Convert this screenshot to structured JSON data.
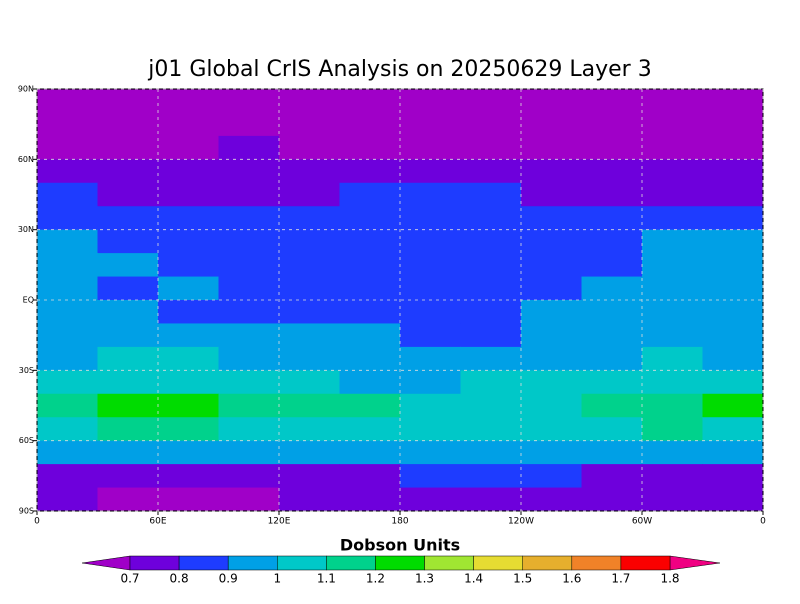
{
  "chart_data": {
    "type": "contour-map",
    "title": "j01 Global CrIS Analysis on 20250629 Layer 3",
    "colorbar_label": "Dobson Units",
    "xlim": [
      0,
      360
    ],
    "ylim": [
      -90,
      90
    ],
    "xticks": [
      0,
      {
        "value": 60,
        "label": "60E"
      },
      {
        "value": 120,
        "label": "120E"
      },
      180,
      {
        "value": 240,
        "label": "120W"
      },
      {
        "value": 300,
        "label": "60W"
      },
      {
        "value": 360,
        "label": "0"
      }
    ],
    "yticks": [
      {
        "value": 90,
        "label": "90N"
      },
      {
        "value": 60,
        "label": "60N"
      },
      {
        "value": 30,
        "label": "30N"
      },
      {
        "value": 0,
        "label": "EQ"
      },
      {
        "value": -30,
        "label": "30S"
      },
      {
        "value": -60,
        "label": "60S"
      },
      {
        "value": -90,
        "label": "90S"
      }
    ],
    "grid": true,
    "levels": [
      0.7,
      0.8,
      0.9,
      1,
      1.1,
      1.2,
      1.3,
      1.4,
      1.5,
      1.6,
      1.7,
      1.8
    ],
    "colors": [
      "#a000c8",
      "#6e00dc",
      "#1e3cff",
      "#00a0e6",
      "#00c8c8",
      "#00d28c",
      "#00dc00",
      "#a0e632",
      "#e6dc32",
      "#e6af2d",
      "#f08228",
      "#fa0000",
      "#f00082"
    ],
    "z": [
      [
        0.65,
        0.65,
        0.65,
        0.65,
        0.65,
        0.65,
        0.65,
        0.65,
        0.65,
        0.65,
        0.65,
        0.65
      ],
      [
        0.65,
        0.65,
        0.65,
        0.65,
        0.65,
        0.65,
        0.65,
        0.65,
        0.65,
        0.65,
        0.65,
        0.65
      ],
      [
        0.65,
        0.65,
        0.65,
        0.75,
        0.65,
        0.65,
        0.65,
        0.65,
        0.65,
        0.65,
        0.65,
        0.65
      ],
      [
        0.75,
        0.75,
        0.75,
        0.75,
        0.75,
        0.75,
        0.75,
        0.75,
        0.75,
        0.75,
        0.75,
        0.75
      ],
      [
        0.85,
        0.75,
        0.75,
        0.75,
        0.75,
        0.85,
        0.85,
        0.85,
        0.75,
        0.75,
        0.75,
        0.75
      ],
      [
        0.85,
        0.85,
        0.85,
        0.85,
        0.85,
        0.85,
        0.85,
        0.85,
        0.85,
        0.85,
        0.85,
        0.85
      ],
      [
        0.95,
        0.85,
        0.85,
        0.85,
        0.85,
        0.85,
        0.85,
        0.85,
        0.85,
        0.85,
        0.95,
        0.95
      ],
      [
        0.95,
        0.95,
        0.85,
        0.85,
        0.85,
        0.85,
        0.85,
        0.85,
        0.85,
        0.85,
        0.95,
        0.95
      ],
      [
        0.95,
        0.85,
        0.95,
        0.85,
        0.85,
        0.85,
        0.85,
        0.85,
        0.85,
        0.95,
        0.95,
        0.95
      ],
      [
        0.95,
        0.95,
        0.85,
        0.85,
        0.85,
        0.85,
        0.85,
        0.85,
        0.95,
        0.95,
        0.95,
        0.95
      ],
      [
        0.95,
        0.95,
        0.95,
        0.95,
        0.95,
        0.95,
        0.85,
        0.85,
        0.95,
        0.95,
        0.95,
        0.95
      ],
      [
        0.95,
        1.05,
        1.05,
        0.95,
        0.95,
        0.95,
        0.95,
        0.95,
        0.95,
        0.95,
        1.05,
        0.95
      ],
      [
        1.05,
        1.05,
        1.05,
        1.05,
        1.05,
        0.95,
        0.95,
        1.05,
        1.05,
        1.05,
        1.05,
        1.05
      ],
      [
        1.15,
        1.25,
        1.25,
        1.15,
        1.15,
        1.15,
        1.05,
        1.05,
        1.05,
        1.15,
        1.15,
        1.25
      ],
      [
        1.05,
        1.15,
        1.15,
        1.05,
        1.05,
        1.05,
        1.05,
        1.05,
        1.05,
        1.05,
        1.15,
        1.05
      ],
      [
        0.95,
        0.95,
        0.95,
        0.95,
        0.95,
        0.95,
        0.95,
        0.95,
        0.95,
        0.95,
        0.95,
        0.95
      ],
      [
        0.75,
        0.75,
        0.75,
        0.75,
        0.75,
        0.75,
        0.85,
        0.85,
        0.85,
        0.75,
        0.75,
        0.75
      ],
      [
        0.75,
        0.65,
        0.65,
        0.65,
        0.75,
        0.75,
        0.75,
        0.75,
        0.75,
        0.75,
        0.75,
        0.75
      ]
    ]
  }
}
